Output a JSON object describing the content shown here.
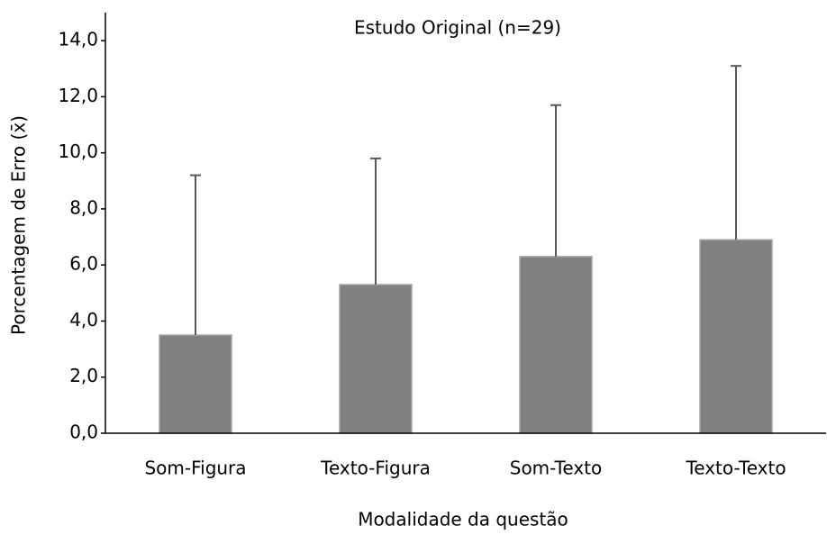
{
  "chart_data": {
    "type": "bar",
    "title": "Estudo Original (n=29)",
    "x_label": "Modalidade da questão",
    "y_label": "Porcentagem de Erro (x̄)",
    "categories": [
      "Som-Figura",
      "Texto-Figura",
      "Som-Texto",
      "Texto-Texto"
    ],
    "values": [
      3.5,
      5.3,
      6.3,
      6.9
    ],
    "errors": [
      5.7,
      4.5,
      5.4,
      6.2
    ],
    "color": "#808080",
    "error_color": "#595959",
    "ylim": [
      0,
      15
    ],
    "yticks": [
      {
        "value": 0,
        "label": "0,0"
      },
      {
        "value": 2,
        "label": "2,0"
      },
      {
        "value": 4,
        "label": "4,0"
      },
      {
        "value": 6,
        "label": "6,0"
      },
      {
        "value": 8,
        "label": "8,0"
      },
      {
        "value": 10,
        "label": "10,0"
      },
      {
        "value": 12,
        "label": "12,0"
      },
      {
        "value": 14,
        "label": "14,0"
      }
    ],
    "grid": false
  }
}
